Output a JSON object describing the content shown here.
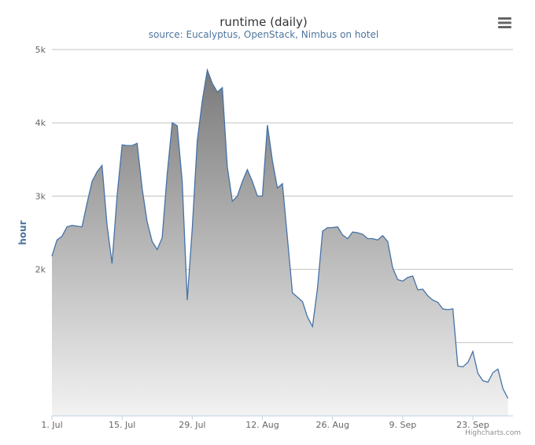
{
  "chart_data": {
    "type": "area",
    "title": "runtime (daily)",
    "subtitle": "source: Eucalyptus, OpenStack, Nimbus on hotel",
    "ylabel": "hour",
    "xlabel": "",
    "ylim": [
      0,
      5000
    ],
    "yticks": [
      0,
      1000,
      2000,
      3000,
      4000,
      5000
    ],
    "ytick_labels": [
      "",
      "",
      "2k",
      "3k",
      "4k",
      "5k"
    ],
    "x_range": [
      "2013-07-01",
      "2013-10-01"
    ],
    "xticks": [
      {
        "date": "2013-07-01",
        "label": "1. Jul"
      },
      {
        "date": "2013-07-15",
        "label": "15. Jul"
      },
      {
        "date": "2013-07-29",
        "label": "29. Jul"
      },
      {
        "date": "2013-08-12",
        "label": "12. Aug"
      },
      {
        "date": "2013-08-26",
        "label": "26. Aug"
      },
      {
        "date": "2013-09-09",
        "label": "9. Sep"
      },
      {
        "date": "2013-09-23",
        "label": "23. Sep"
      }
    ],
    "grid": true,
    "legend": "none",
    "colors": {
      "line": "#4572a7",
      "fill_top": "#7a7a7a",
      "fill_bottom": "#f2f2f2",
      "grid": "#c0c0c0",
      "axis": "#c0d0e0"
    },
    "series": [
      {
        "x": [
          "2013-07-01",
          "2013-07-02",
          "2013-07-03",
          "2013-07-04",
          "2013-07-05",
          "2013-07-06",
          "2013-07-07",
          "2013-07-08",
          "2013-07-09",
          "2013-07-10",
          "2013-07-11",
          "2013-07-12",
          "2013-07-13",
          "2013-07-14",
          "2013-07-15",
          "2013-07-16",
          "2013-07-17",
          "2013-07-18",
          "2013-07-19",
          "2013-07-20",
          "2013-07-21",
          "2013-07-22",
          "2013-07-23",
          "2013-07-24",
          "2013-07-25",
          "2013-07-26",
          "2013-07-27",
          "2013-07-28",
          "2013-07-29",
          "2013-07-30",
          "2013-07-31",
          "2013-08-01",
          "2013-08-02",
          "2013-08-03",
          "2013-08-04",
          "2013-08-05",
          "2013-08-06",
          "2013-08-07",
          "2013-08-08",
          "2013-08-09",
          "2013-08-10",
          "2013-08-11",
          "2013-08-12",
          "2013-08-13",
          "2013-08-14",
          "2013-08-15",
          "2013-08-16",
          "2013-08-17",
          "2013-08-18",
          "2013-08-19",
          "2013-08-20",
          "2013-08-21",
          "2013-08-22",
          "2013-08-23",
          "2013-08-24",
          "2013-08-25",
          "2013-08-26",
          "2013-08-27",
          "2013-08-28",
          "2013-08-29",
          "2013-08-30",
          "2013-08-31",
          "2013-09-01",
          "2013-09-02",
          "2013-09-03",
          "2013-09-04",
          "2013-09-05",
          "2013-09-06",
          "2013-09-07",
          "2013-09-08",
          "2013-09-09",
          "2013-09-10",
          "2013-09-11",
          "2013-09-12",
          "2013-09-13",
          "2013-09-14",
          "2013-09-15",
          "2013-09-16",
          "2013-09-17",
          "2013-09-18",
          "2013-09-19",
          "2013-09-20",
          "2013-09-21",
          "2013-09-22",
          "2013-09-23",
          "2013-09-24",
          "2013-09-25",
          "2013-09-26",
          "2013-09-27",
          "2013-09-28",
          "2013-09-29",
          "2013-09-30"
        ],
        "values": [
          2180,
          2400,
          2450,
          2580,
          2600,
          2590,
          2580,
          2900,
          3200,
          3330,
          3420,
          2600,
          2080,
          3000,
          3700,
          3690,
          3690,
          3720,
          3100,
          2650,
          2380,
          2270,
          2430,
          3300,
          4000,
          3960,
          3200,
          1580,
          2550,
          3750,
          4300,
          4720,
          4540,
          4420,
          4480,
          3400,
          2930,
          3000,
          3200,
          3360,
          3200,
          3000,
          3000,
          3970,
          3480,
          3110,
          3170,
          2420,
          1680,
          1620,
          1560,
          1350,
          1220,
          1750,
          2520,
          2570,
          2570,
          2580,
          2470,
          2420,
          2510,
          2500,
          2480,
          2420,
          2420,
          2400,
          2460,
          2380,
          2020,
          1860,
          1840,
          1890,
          1910,
          1720,
          1730,
          1640,
          1580,
          1550,
          1460,
          1450,
          1460,
          680,
          670,
          730,
          880,
          580,
          480,
          460,
          590,
          640,
          370,
          240
        ]
      }
    ]
  },
  "menu": {
    "icon": "hamburger-menu-icon"
  },
  "credits": "Highcharts.com"
}
